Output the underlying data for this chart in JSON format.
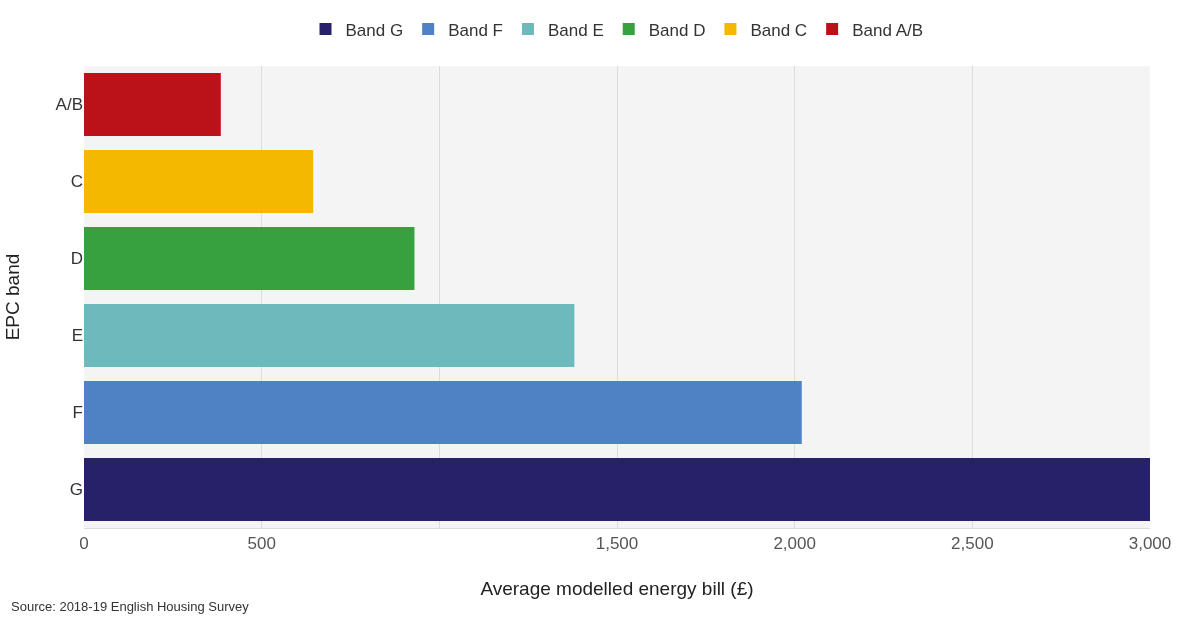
{
  "chart_data": {
    "type": "bar",
    "orientation": "horizontal",
    "ylabel": "EPC band",
    "xlabel": "Average modelled energy bill (£)",
    "categories": [
      "A/B",
      "C",
      "D",
      "E",
      "F",
      "G"
    ],
    "series": [
      {
        "name": "Band G",
        "color": "#27216a",
        "values": [
          null,
          null,
          null,
          null,
          null,
          3000
        ]
      },
      {
        "name": "Band F",
        "color": "#4e82c4",
        "values": [
          null,
          null,
          null,
          null,
          2020,
          null
        ]
      },
      {
        "name": "Band E",
        "color": "#6db9bb",
        "values": [
          null,
          null,
          null,
          1380,
          null,
          null
        ]
      },
      {
        "name": "Band D",
        "color": "#37a03f",
        "values": [
          null,
          null,
          930,
          null,
          null,
          null
        ]
      },
      {
        "name": "Band C",
        "color": "#f5b800",
        "values": [
          null,
          645,
          null,
          null,
          null,
          null
        ]
      },
      {
        "name": "Band A/B",
        "color": "#bb1219",
        "values": [
          385,
          null,
          null,
          null,
          null,
          null
        ]
      }
    ],
    "xlim": [
      0,
      3000
    ],
    "xticks": [
      0,
      500,
      {
        "value": 1000,
        "label": null
      },
      {
        "value": 1500,
        "label": "1,500"
      },
      {
        "value": 2000,
        "label": "2,000"
      },
      {
        "value": 2500,
        "label": "2,500"
      },
      {
        "value": 3000,
        "label": "3,000"
      }
    ],
    "grid": "x",
    "legend": "top",
    "annotations": [
      "Source: 2018-19 English Housing Survey"
    ]
  }
}
